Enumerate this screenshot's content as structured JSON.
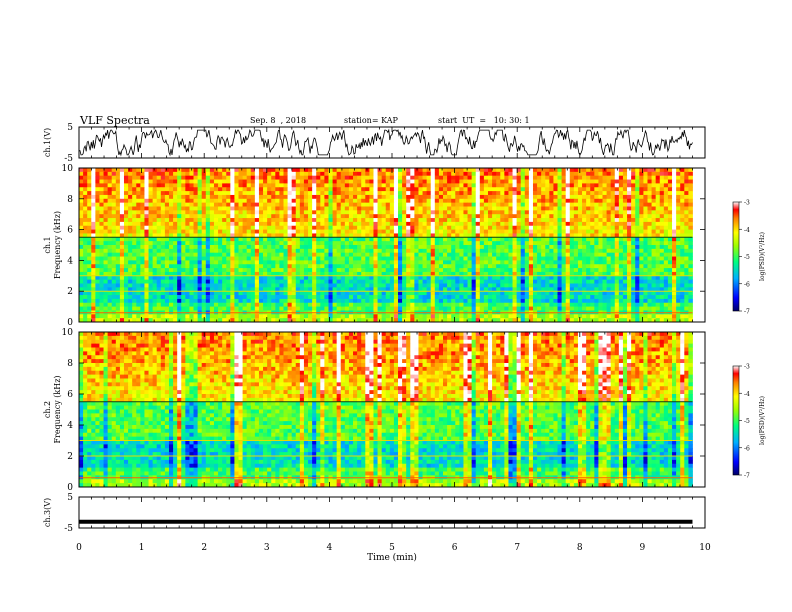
{
  "header": {
    "title": "VLF Spectra",
    "date": "Sep. 8  , 2018",
    "station": "station= KAP",
    "start": "start  UT  =   10: 30: 1"
  },
  "chart_data": [
    {
      "type": "line",
      "panel": "ch1-waveform",
      "ylabel": "ch.1(V)",
      "yticks": [
        "5",
        "-5"
      ],
      "ylim": [
        -5,
        5
      ],
      "xlim": [
        0,
        10
      ],
      "data_end_min": 9.8,
      "series": [
        {
          "values_range": [
            -4,
            4
          ],
          "color": "#000000"
        }
      ]
    },
    {
      "type": "heatmap",
      "panel": "ch1-spectrogram",
      "ylabel": "ch.1\nFrequency (kHz)",
      "yticks": [
        "0",
        "2",
        "4",
        "6",
        "8",
        "10"
      ],
      "ylim": [
        0,
        10
      ],
      "xlim": [
        0,
        10
      ],
      "data_end_min": 9.8,
      "colorbar": {
        "label": "log(PSD)(V²/Hz)",
        "ticks": [
          "-3",
          "-4",
          "-5",
          "-6",
          "-7"
        ],
        "range": [
          -7,
          -3
        ]
      }
    },
    {
      "type": "heatmap",
      "panel": "ch2-spectrogram",
      "ylabel": "ch.2\nFrequency (kHz)",
      "yticks": [
        "0",
        "2",
        "4",
        "6",
        "8",
        "10"
      ],
      "ylim": [
        0,
        10
      ],
      "xlim": [
        0,
        10
      ],
      "data_end_min": 9.8,
      "colorbar": {
        "label": "log(PSD)(V²/Hz)",
        "ticks": [
          "-3",
          "-4",
          "-5",
          "-6",
          "-7"
        ],
        "range": [
          -7,
          -3
        ]
      }
    },
    {
      "type": "line",
      "panel": "ch3-waveform",
      "ylabel": "ch.3(V)",
      "yticks": [
        "5",
        "-5"
      ],
      "ylim": [
        -5,
        5
      ],
      "xlim": [
        0,
        10
      ],
      "data_end_min": 9.8,
      "series": [
        {
          "values": [
            -3,
            -3
          ],
          "x": [
            0,
            9.8
          ],
          "color": "#000000"
        }
      ]
    }
  ],
  "xaxis": {
    "label": "Time  (min)",
    "ticks": [
      "0",
      "1",
      "2",
      "3",
      "4",
      "5",
      "6",
      "7",
      "8",
      "9",
      "10"
    ]
  }
}
